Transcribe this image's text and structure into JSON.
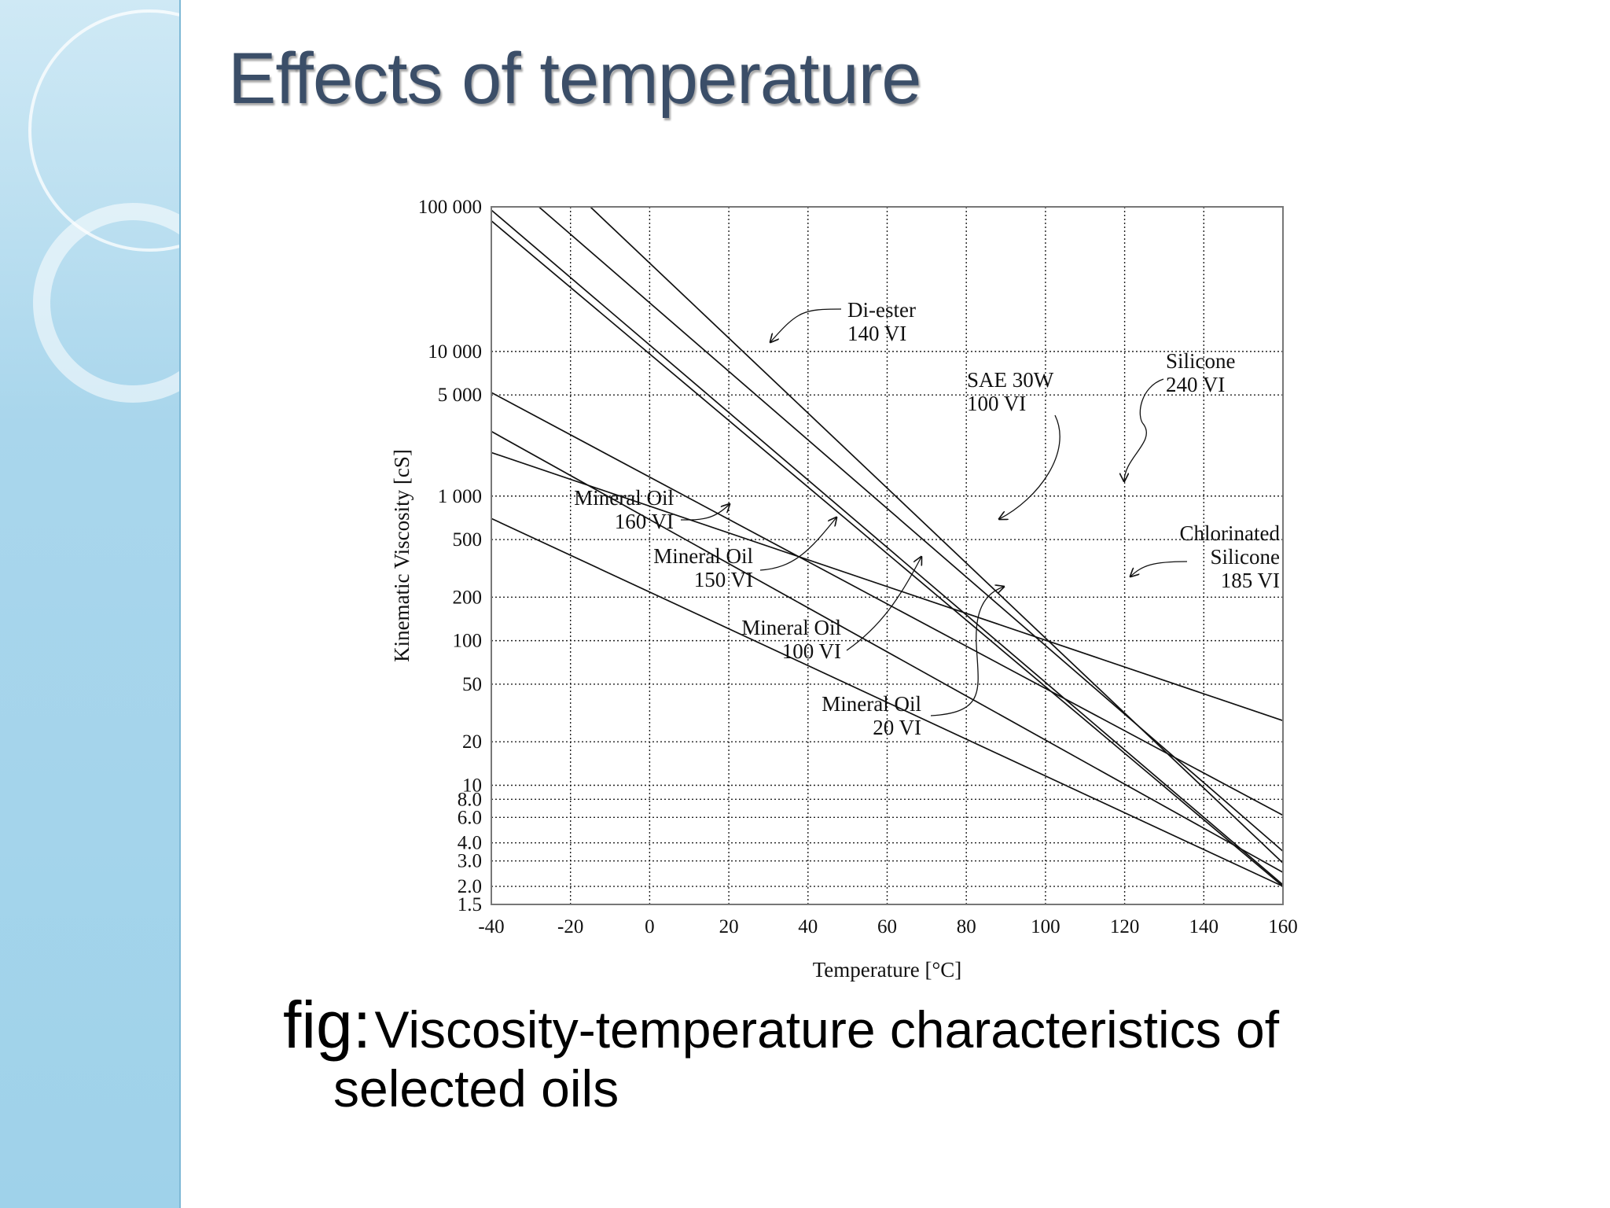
{
  "slide": {
    "title": "Effects of temperature",
    "caption_prefix": "fig:",
    "caption_line1": "Viscosity-temperature characteristics of",
    "caption_line2": "selected oils"
  },
  "theme": {
    "sidebar_color": "#a9d6ec",
    "title_color": "#3b4e68"
  },
  "chart_data": {
    "type": "line",
    "xlabel": "Temperature [°C]",
    "ylabel": "Kinematic Viscosity [cS]",
    "xlim": [
      -40,
      160
    ],
    "ylim": [
      1.5,
      100000
    ],
    "x_ticks": [
      -40,
      -20,
      0,
      20,
      40,
      60,
      80,
      100,
      120,
      140,
      160
    ],
    "y_ticks": [
      {
        "value": 100000,
        "label": "100 000"
      },
      {
        "value": 10000,
        "label": "10 000"
      },
      {
        "value": 5000,
        "label": "5 000"
      },
      {
        "value": 1000,
        "label": "1 000"
      },
      {
        "value": 500,
        "label": "500"
      },
      {
        "value": 200,
        "label": "200"
      },
      {
        "value": 100,
        "label": "100"
      },
      {
        "value": 50,
        "label": "50"
      },
      {
        "value": 20,
        "label": "20"
      },
      {
        "value": 10,
        "label": "10"
      },
      {
        "value": 8,
        "label": "8.0"
      },
      {
        "value": 6,
        "label": "6.0"
      },
      {
        "value": 4,
        "label": "4.0"
      },
      {
        "value": 3,
        "label": "3.0"
      },
      {
        "value": 2,
        "label": "2.0"
      },
      {
        "value": 1.5,
        "label": "1.5"
      }
    ],
    "grid": true,
    "series": [
      {
        "name": "Di-ester 140 VI",
        "points": [
          [
            -28,
            100000
          ],
          [
            160,
            3.5
          ]
        ]
      },
      {
        "name": "SAE 30W 100 VI",
        "points": [
          [
            -15,
            100000
          ],
          [
            160,
            2.9
          ]
        ]
      },
      {
        "name": "Silicone 240 VI",
        "points": [
          [
            -40,
            2000
          ],
          [
            160,
            28
          ]
        ]
      },
      {
        "name": "Chlorinated Silicone 185 VI",
        "points": [
          [
            -40,
            5200
          ],
          [
            160,
            6.2
          ]
        ]
      },
      {
        "name": "Mineral Oil 160 VI",
        "points": [
          [
            -40,
            2800
          ],
          [
            160,
            2.5
          ]
        ]
      },
      {
        "name": "Mineral Oil 150 VI",
        "points": [
          [
            -40,
            700
          ],
          [
            160,
            2.0
          ]
        ]
      },
      {
        "name": "Mineral Oil 100 VI",
        "points": [
          [
            -40,
            80000
          ],
          [
            160,
            2.0
          ]
        ]
      },
      {
        "name": "Mineral Oil 20 VI",
        "points": [
          [
            -40,
            95000
          ],
          [
            160,
            2.05
          ]
        ]
      }
    ],
    "annotations": [
      {
        "id": "di-ester",
        "lines": [
          "Di-ester",
          "140 VI"
        ]
      },
      {
        "id": "sae30w",
        "lines": [
          "SAE 30W",
          "100 VI"
        ]
      },
      {
        "id": "silicone",
        "lines": [
          "Silicone",
          "240 VI"
        ]
      },
      {
        "id": "chlorinated",
        "lines": [
          "Chlorinated",
          "Silicone",
          "185 VI"
        ]
      },
      {
        "id": "mo160",
        "lines": [
          "Mineral Oil",
          "160 VI"
        ]
      },
      {
        "id": "mo150",
        "lines": [
          "Mineral Oil",
          "150 VI"
        ]
      },
      {
        "id": "mo100",
        "lines": [
          "Mineral Oil",
          "100 VI"
        ]
      },
      {
        "id": "mo20",
        "lines": [
          "Mineral Oil",
          "20 VI"
        ]
      }
    ]
  }
}
